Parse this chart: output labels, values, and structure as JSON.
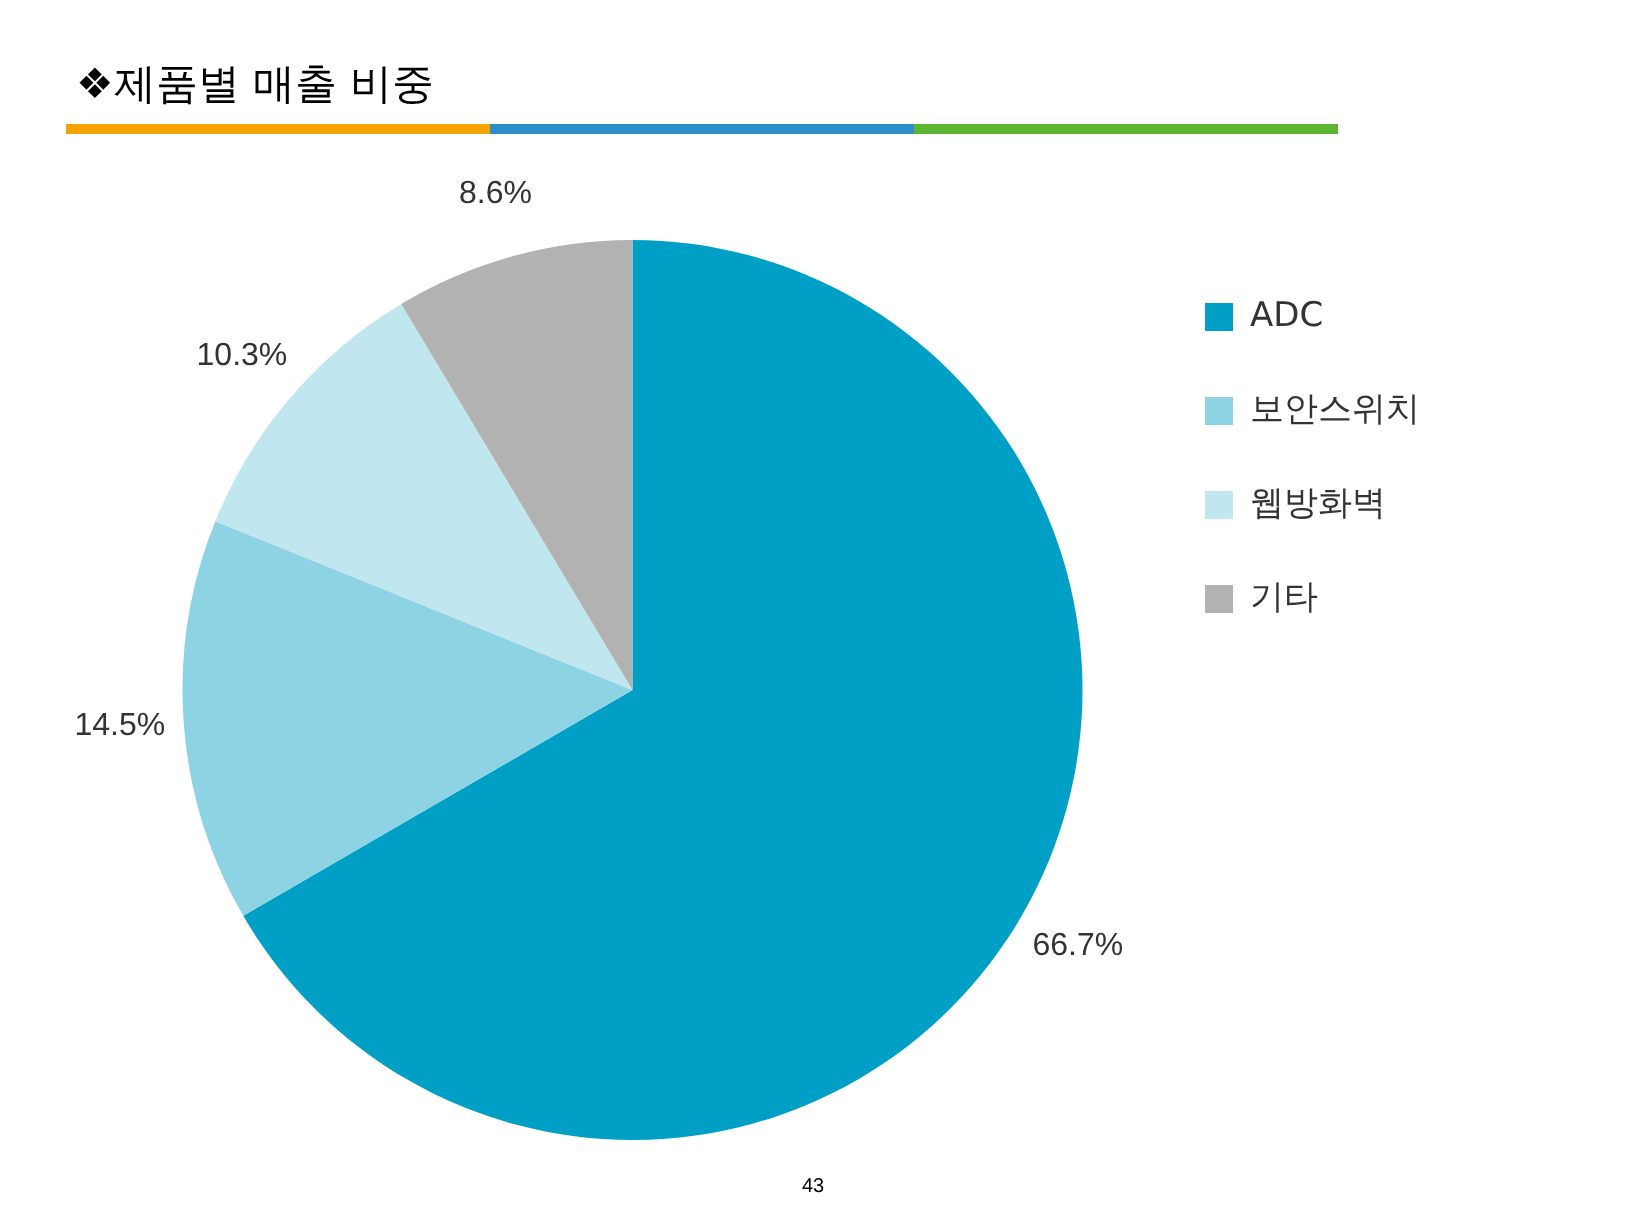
{
  "chart_data": {
    "type": "pie",
    "title": "❖제품별 매출 비중",
    "categories": [
      "ADC",
      "보안스위치",
      "웹방화벽",
      "기타"
    ],
    "values": [
      66.7,
      14.5,
      10.3,
      8.6
    ],
    "colors": [
      "#00a0c6",
      "#8dd3e3",
      "#c0e6f0",
      "#b2b2b2"
    ],
    "value_labels": [
      "66.7%",
      "14.5%",
      "10.3%",
      "8.6%"
    ],
    "legend": "top right",
    "annotations": [
      "43"
    ]
  }
}
